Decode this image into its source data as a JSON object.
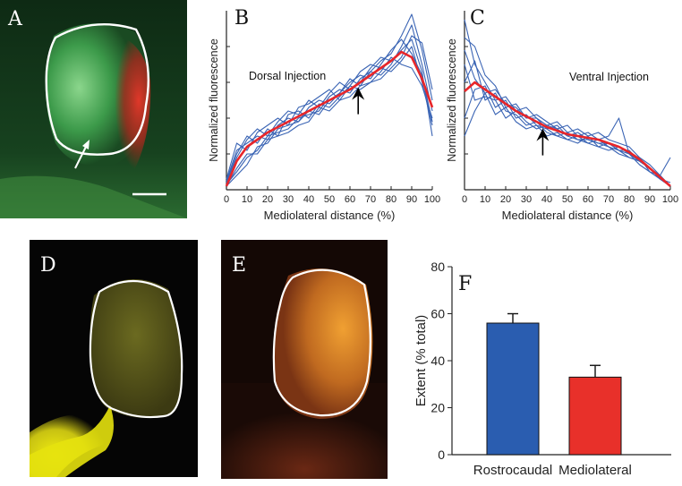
{
  "figure": {
    "panels": [
      {
        "id": "A",
        "label": "A",
        "kind": "micrograph"
      },
      {
        "id": "B",
        "label": "B",
        "kind": "line",
        "annotation": "Dorsal Injection"
      },
      {
        "id": "C",
        "label": "C",
        "kind": "line",
        "annotation": "Ventral Injection"
      },
      {
        "id": "D",
        "label": "D",
        "kind": "micrograph"
      },
      {
        "id": "E",
        "label": "E",
        "kind": "micrograph"
      },
      {
        "id": "F",
        "label": "F",
        "kind": "bar"
      }
    ]
  },
  "chart_data": [
    {
      "panel": "B",
      "type": "line",
      "xlabel": "Mediolateral distance (%)",
      "ylabel": "Normalized fluorescence",
      "xticks": [
        "0",
        "10",
        "20",
        "30",
        "40",
        "50",
        "60",
        "70",
        "80",
        "90",
        "100"
      ],
      "xlim": [
        0,
        100
      ],
      "ylim": [
        0,
        1
      ],
      "grid": false,
      "annotation": "Dorsal Injection",
      "arrow_x": 64,
      "series": [
        {
          "color": "#e8262a",
          "role": "mean",
          "x": [
            0,
            5,
            10,
            15,
            20,
            25,
            30,
            35,
            40,
            45,
            50,
            55,
            60,
            65,
            70,
            75,
            80,
            85,
            90,
            95,
            100
          ],
          "y": [
            0.02,
            0.16,
            0.24,
            0.28,
            0.32,
            0.35,
            0.38,
            0.41,
            0.44,
            0.47,
            0.5,
            0.53,
            0.56,
            0.6,
            0.64,
            0.68,
            0.72,
            0.77,
            0.74,
            0.62,
            0.46
          ]
        },
        {
          "color": "#3a64b4",
          "role": "individual",
          "x": [
            0,
            5,
            10,
            15,
            20,
            25,
            30,
            35,
            40,
            45,
            50,
            55,
            60,
            65,
            70,
            75,
            80,
            85,
            90,
            95,
            100
          ],
          "y": [
            0.05,
            0.22,
            0.26,
            0.3,
            0.28,
            0.36,
            0.4,
            0.38,
            0.46,
            0.5,
            0.48,
            0.54,
            0.62,
            0.58,
            0.66,
            0.72,
            0.76,
            0.86,
            0.98,
            0.78,
            0.5
          ]
        },
        {
          "color": "#3a64b4",
          "role": "individual",
          "x": [
            0,
            5,
            10,
            15,
            20,
            25,
            30,
            35,
            40,
            45,
            50,
            55,
            60,
            65,
            70,
            75,
            80,
            85,
            90,
            95,
            100
          ],
          "y": [
            0.03,
            0.1,
            0.18,
            0.22,
            0.3,
            0.32,
            0.34,
            0.4,
            0.42,
            0.44,
            0.52,
            0.56,
            0.54,
            0.62,
            0.66,
            0.64,
            0.7,
            0.8,
            0.92,
            0.7,
            0.44
          ]
        },
        {
          "color": "#3a64b4",
          "role": "individual",
          "x": [
            0,
            5,
            10,
            15,
            20,
            25,
            30,
            35,
            40,
            45,
            50,
            55,
            60,
            65,
            70,
            75,
            80,
            85,
            90,
            95,
            100
          ],
          "y": [
            0.04,
            0.2,
            0.3,
            0.26,
            0.34,
            0.3,
            0.42,
            0.44,
            0.4,
            0.48,
            0.46,
            0.52,
            0.58,
            0.56,
            0.6,
            0.66,
            0.74,
            0.7,
            0.68,
            0.58,
            0.4
          ]
        },
        {
          "color": "#3a64b4",
          "role": "individual",
          "x": [
            0,
            5,
            10,
            15,
            20,
            25,
            30,
            35,
            40,
            45,
            50,
            55,
            60,
            65,
            70,
            75,
            80,
            85,
            90,
            95,
            100
          ],
          "y": [
            0.02,
            0.08,
            0.14,
            0.24,
            0.26,
            0.34,
            0.36,
            0.38,
            0.44,
            0.42,
            0.5,
            0.54,
            0.6,
            0.64,
            0.62,
            0.7,
            0.78,
            0.84,
            0.76,
            0.64,
            0.38
          ]
        },
        {
          "color": "#3a64b4",
          "role": "individual",
          "x": [
            0,
            5,
            10,
            15,
            20,
            25,
            30,
            35,
            40,
            45,
            50,
            55,
            60,
            65,
            70,
            75,
            80,
            85,
            90,
            95,
            100
          ],
          "y": [
            0.06,
            0.26,
            0.22,
            0.32,
            0.36,
            0.4,
            0.36,
            0.46,
            0.48,
            0.52,
            0.56,
            0.5,
            0.58,
            0.66,
            0.7,
            0.68,
            0.66,
            0.72,
            0.8,
            0.6,
            0.36
          ]
        },
        {
          "color": "#3a64b4",
          "role": "individual",
          "x": [
            0,
            5,
            10,
            15,
            20,
            25,
            30,
            35,
            40,
            45,
            50,
            55,
            60,
            65,
            70,
            75,
            80,
            85,
            90,
            95,
            100
          ],
          "y": [
            0.02,
            0.12,
            0.2,
            0.2,
            0.28,
            0.3,
            0.32,
            0.36,
            0.38,
            0.46,
            0.44,
            0.5,
            0.52,
            0.58,
            0.6,
            0.62,
            0.68,
            0.74,
            0.86,
            0.82,
            0.56
          ]
        },
        {
          "color": "#3a64b4",
          "role": "individual",
          "x": [
            0,
            5,
            10,
            15,
            20,
            25,
            30,
            35,
            40,
            45,
            50,
            55,
            60,
            65,
            70,
            75,
            80,
            85,
            90,
            95,
            100
          ],
          "y": [
            0.04,
            0.18,
            0.28,
            0.34,
            0.3,
            0.38,
            0.44,
            0.42,
            0.5,
            0.46,
            0.54,
            0.6,
            0.56,
            0.6,
            0.68,
            0.74,
            0.72,
            0.78,
            0.84,
            0.66,
            0.3
          ]
        }
      ]
    },
    {
      "panel": "C",
      "type": "line",
      "xlabel": "Mediolateral distance (%)",
      "ylabel": "Normalized fluorescence",
      "xticks": [
        "0",
        "10",
        "20",
        "30",
        "40",
        "50",
        "60",
        "70",
        "80",
        "90",
        "100"
      ],
      "xlim": [
        0,
        100
      ],
      "ylim": [
        0,
        1
      ],
      "grid": false,
      "annotation": "Ventral Injection",
      "arrow_x": 38,
      "series": [
        {
          "color": "#e8262a",
          "role": "mean",
          "x": [
            0,
            5,
            10,
            15,
            20,
            25,
            30,
            35,
            40,
            45,
            50,
            55,
            60,
            65,
            70,
            75,
            80,
            85,
            90,
            95,
            100
          ],
          "y": [
            0.55,
            0.6,
            0.56,
            0.52,
            0.48,
            0.44,
            0.41,
            0.38,
            0.35,
            0.33,
            0.31,
            0.3,
            0.29,
            0.28,
            0.26,
            0.24,
            0.21,
            0.17,
            0.12,
            0.07,
            0.02
          ]
        },
        {
          "color": "#3a64b4",
          "role": "individual",
          "x": [
            0,
            5,
            10,
            15,
            20,
            25,
            30,
            35,
            40,
            45,
            50,
            55,
            60,
            65,
            70,
            75,
            80,
            85,
            90,
            95,
            100
          ],
          "y": [
            0.95,
            0.7,
            0.6,
            0.5,
            0.52,
            0.44,
            0.46,
            0.4,
            0.36,
            0.38,
            0.32,
            0.34,
            0.3,
            0.32,
            0.28,
            0.26,
            0.24,
            0.18,
            0.14,
            0.08,
            0.02
          ]
        },
        {
          "color": "#3a64b4",
          "role": "individual",
          "x": [
            0,
            5,
            10,
            15,
            20,
            25,
            30,
            35,
            40,
            45,
            50,
            55,
            60,
            65,
            70,
            75,
            80,
            85,
            90,
            95,
            100
          ],
          "y": [
            0.85,
            0.8,
            0.64,
            0.58,
            0.46,
            0.48,
            0.4,
            0.42,
            0.38,
            0.34,
            0.36,
            0.3,
            0.32,
            0.28,
            0.3,
            0.4,
            0.2,
            0.16,
            0.12,
            0.06,
            0.02
          ]
        },
        {
          "color": "#3a64b4",
          "role": "individual",
          "x": [
            0,
            5,
            10,
            15,
            20,
            25,
            30,
            35,
            40,
            45,
            50,
            55,
            60,
            65,
            70,
            75,
            80,
            85,
            90,
            95,
            100
          ],
          "y": [
            0.6,
            0.72,
            0.5,
            0.54,
            0.44,
            0.42,
            0.36,
            0.38,
            0.32,
            0.3,
            0.28,
            0.3,
            0.26,
            0.24,
            0.26,
            0.22,
            0.2,
            0.18,
            0.1,
            0.08,
            0.02
          ]
        },
        {
          "color": "#3a64b4",
          "role": "individual",
          "x": [
            0,
            5,
            10,
            15,
            20,
            25,
            30,
            35,
            40,
            45,
            50,
            55,
            60,
            65,
            70,
            75,
            80,
            85,
            90,
            95,
            100
          ],
          "y": [
            0.4,
            0.56,
            0.58,
            0.46,
            0.5,
            0.4,
            0.42,
            0.36,
            0.34,
            0.3,
            0.32,
            0.28,
            0.28,
            0.26,
            0.24,
            0.22,
            0.22,
            0.16,
            0.12,
            0.06,
            0.02
          ]
        },
        {
          "color": "#3a64b4",
          "role": "individual",
          "x": [
            0,
            5,
            10,
            15,
            20,
            25,
            30,
            35,
            40,
            45,
            50,
            55,
            60,
            65,
            70,
            75,
            80,
            85,
            90,
            95,
            100
          ],
          "y": [
            0.7,
            0.5,
            0.52,
            0.5,
            0.4,
            0.44,
            0.38,
            0.34,
            0.36,
            0.34,
            0.3,
            0.28,
            0.26,
            0.28,
            0.24,
            0.2,
            0.18,
            0.16,
            0.12,
            0.08,
            0.18
          ]
        },
        {
          "color": "#3a64b4",
          "role": "individual",
          "x": [
            0,
            5,
            10,
            15,
            20,
            25,
            30,
            35,
            40,
            45,
            50,
            55,
            60,
            65,
            70,
            75,
            80,
            85,
            90,
            95,
            100
          ],
          "y": [
            0.3,
            0.44,
            0.54,
            0.42,
            0.46,
            0.38,
            0.34,
            0.36,
            0.3,
            0.32,
            0.28,
            0.26,
            0.3,
            0.24,
            0.22,
            0.24,
            0.2,
            0.14,
            0.1,
            0.06,
            0.02
          ]
        },
        {
          "color": "#3a64b4",
          "role": "individual",
          "x": [
            0,
            5,
            10,
            15,
            20,
            25,
            30,
            35,
            40,
            45,
            50,
            55,
            60,
            65,
            70,
            75,
            80,
            85,
            90,
            95,
            100
          ],
          "y": [
            0.78,
            0.62,
            0.54,
            0.56,
            0.48,
            0.46,
            0.4,
            0.4,
            0.34,
            0.36,
            0.3,
            0.32,
            0.28,
            0.26,
            0.26,
            0.22,
            0.18,
            0.16,
            0.12,
            0.06,
            0.04
          ]
        }
      ]
    },
    {
      "panel": "F",
      "type": "bar",
      "categories": [
        "Rostrocaudal",
        "Mediolateral"
      ],
      "values": [
        56,
        33
      ],
      "errors": [
        4,
        5
      ],
      "colors": [
        "#2a5db0",
        "#e8302a"
      ],
      "ylabel": "Extent (% total)",
      "ylim": [
        0,
        80
      ],
      "yticks": [
        "0",
        "20",
        "40",
        "60",
        "80"
      ],
      "grid": false
    }
  ]
}
